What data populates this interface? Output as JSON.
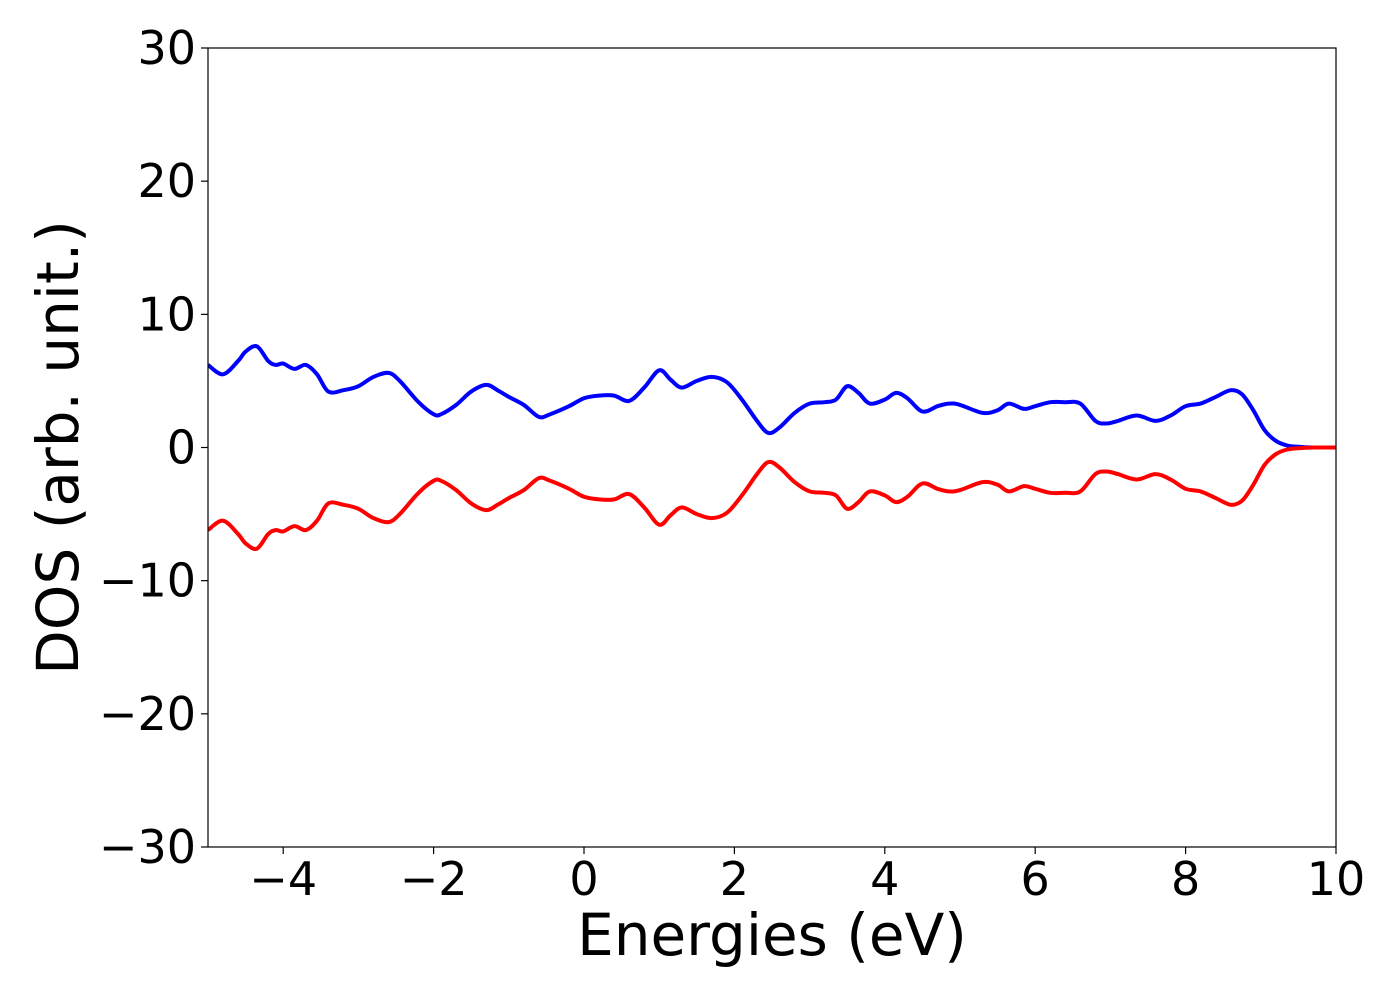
{
  "chart_data": {
    "type": "line",
    "title": "",
    "xlabel": "Energies (eV)",
    "ylabel": "DOS (arb. unit.)",
    "xlim": [
      -5,
      10
    ],
    "ylim": [
      -30,
      30
    ],
    "xticks": [
      -4,
      -2,
      0,
      2,
      4,
      6,
      8,
      10
    ],
    "xtick_labels": [
      "−4",
      "−2",
      "0",
      "2",
      "4",
      "6",
      "8",
      "10"
    ],
    "yticks": [
      30,
      20,
      10,
      0,
      -10,
      -20,
      -30
    ],
    "ytick_labels": [
      "30",
      "20",
      "10",
      "0",
      "−10",
      "−20",
      "−30"
    ],
    "grid": false,
    "legend": "none",
    "series": [
      {
        "color": "#0000ff",
        "x": [
          -5.0,
          -4.8,
          -4.6,
          -4.5,
          -4.35,
          -4.2,
          -4.1,
          -4.0,
          -3.85,
          -3.7,
          -3.55,
          -3.4,
          -3.2,
          -3.0,
          -2.8,
          -2.6,
          -2.45,
          -2.2,
          -2.0,
          -1.9,
          -1.7,
          -1.5,
          -1.3,
          -1.15,
          -1.0,
          -0.8,
          -0.6,
          -0.45,
          -0.2,
          0.0,
          0.2,
          0.4,
          0.6,
          0.8,
          1.0,
          1.15,
          1.3,
          1.5,
          1.7,
          1.9,
          2.1,
          2.3,
          2.45,
          2.6,
          2.8,
          3.0,
          3.2,
          3.35,
          3.5,
          3.65,
          3.8,
          4.0,
          4.15,
          4.3,
          4.5,
          4.7,
          4.85,
          5.0,
          5.3,
          5.5,
          5.65,
          5.85,
          6.0,
          6.2,
          6.4,
          6.6,
          6.8,
          6.95,
          7.1,
          7.35,
          7.6,
          7.8,
          8.0,
          8.2,
          8.4,
          8.6,
          8.75,
          8.9,
          9.05,
          9.2,
          9.35,
          9.5,
          9.7,
          10.0
        ],
        "y": [
          6.2,
          5.5,
          6.5,
          7.2,
          7.6,
          6.5,
          6.2,
          6.3,
          5.9,
          6.2,
          5.5,
          4.2,
          4.3,
          4.6,
          5.3,
          5.6,
          5.0,
          3.4,
          2.5,
          2.5,
          3.2,
          4.2,
          4.7,
          4.3,
          3.8,
          3.2,
          2.3,
          2.5,
          3.1,
          3.7,
          3.9,
          3.9,
          3.5,
          4.5,
          5.8,
          5.1,
          4.5,
          5.0,
          5.3,
          4.9,
          3.6,
          2.0,
          1.1,
          1.5,
          2.6,
          3.3,
          3.4,
          3.6,
          4.6,
          4.1,
          3.3,
          3.6,
          4.1,
          3.7,
          2.7,
          3.1,
          3.3,
          3.2,
          2.6,
          2.8,
          3.3,
          2.9,
          3.1,
          3.4,
          3.4,
          3.3,
          2.0,
          1.8,
          2.0,
          2.4,
          2.0,
          2.4,
          3.1,
          3.3,
          3.8,
          4.3,
          4.0,
          2.8,
          1.3,
          0.5,
          0.15,
          0.05,
          0.0,
          0.0
        ]
      },
      {
        "color": "#ff0000",
        "x": [
          -5.0,
          -4.8,
          -4.6,
          -4.5,
          -4.35,
          -4.2,
          -4.1,
          -4.0,
          -3.85,
          -3.7,
          -3.55,
          -3.4,
          -3.2,
          -3.0,
          -2.8,
          -2.6,
          -2.45,
          -2.2,
          -2.0,
          -1.9,
          -1.7,
          -1.5,
          -1.3,
          -1.15,
          -1.0,
          -0.8,
          -0.6,
          -0.45,
          -0.2,
          0.0,
          0.2,
          0.4,
          0.6,
          0.8,
          1.0,
          1.15,
          1.3,
          1.5,
          1.7,
          1.9,
          2.1,
          2.3,
          2.45,
          2.6,
          2.8,
          3.0,
          3.2,
          3.35,
          3.5,
          3.65,
          3.8,
          4.0,
          4.15,
          4.3,
          4.5,
          4.7,
          4.85,
          5.0,
          5.3,
          5.5,
          5.65,
          5.85,
          6.0,
          6.2,
          6.4,
          6.6,
          6.8,
          6.95,
          7.1,
          7.35,
          7.6,
          7.8,
          8.0,
          8.2,
          8.4,
          8.6,
          8.75,
          8.9,
          9.05,
          9.2,
          9.35,
          9.5,
          9.7,
          10.0
        ],
        "y": [
          -6.2,
          -5.5,
          -6.5,
          -7.2,
          -7.6,
          -6.5,
          -6.2,
          -6.3,
          -5.9,
          -6.2,
          -5.5,
          -4.2,
          -4.3,
          -4.6,
          -5.3,
          -5.6,
          -5.0,
          -3.4,
          -2.5,
          -2.5,
          -3.2,
          -4.2,
          -4.7,
          -4.3,
          -3.8,
          -3.2,
          -2.3,
          -2.5,
          -3.1,
          -3.7,
          -3.9,
          -3.9,
          -3.5,
          -4.5,
          -5.8,
          -5.1,
          -4.5,
          -5.0,
          -5.3,
          -4.9,
          -3.6,
          -2.0,
          -1.1,
          -1.5,
          -2.6,
          -3.3,
          -3.4,
          -3.6,
          -4.6,
          -4.1,
          -3.3,
          -3.6,
          -4.1,
          -3.7,
          -2.7,
          -3.1,
          -3.3,
          -3.2,
          -2.6,
          -2.8,
          -3.3,
          -2.9,
          -3.1,
          -3.4,
          -3.4,
          -3.3,
          -2.0,
          -1.8,
          -2.0,
          -2.4,
          -2.0,
          -2.4,
          -3.1,
          -3.3,
          -3.8,
          -4.3,
          -4.0,
          -2.8,
          -1.3,
          -0.5,
          -0.15,
          -0.05,
          0.0,
          0.0
        ]
      }
    ]
  }
}
